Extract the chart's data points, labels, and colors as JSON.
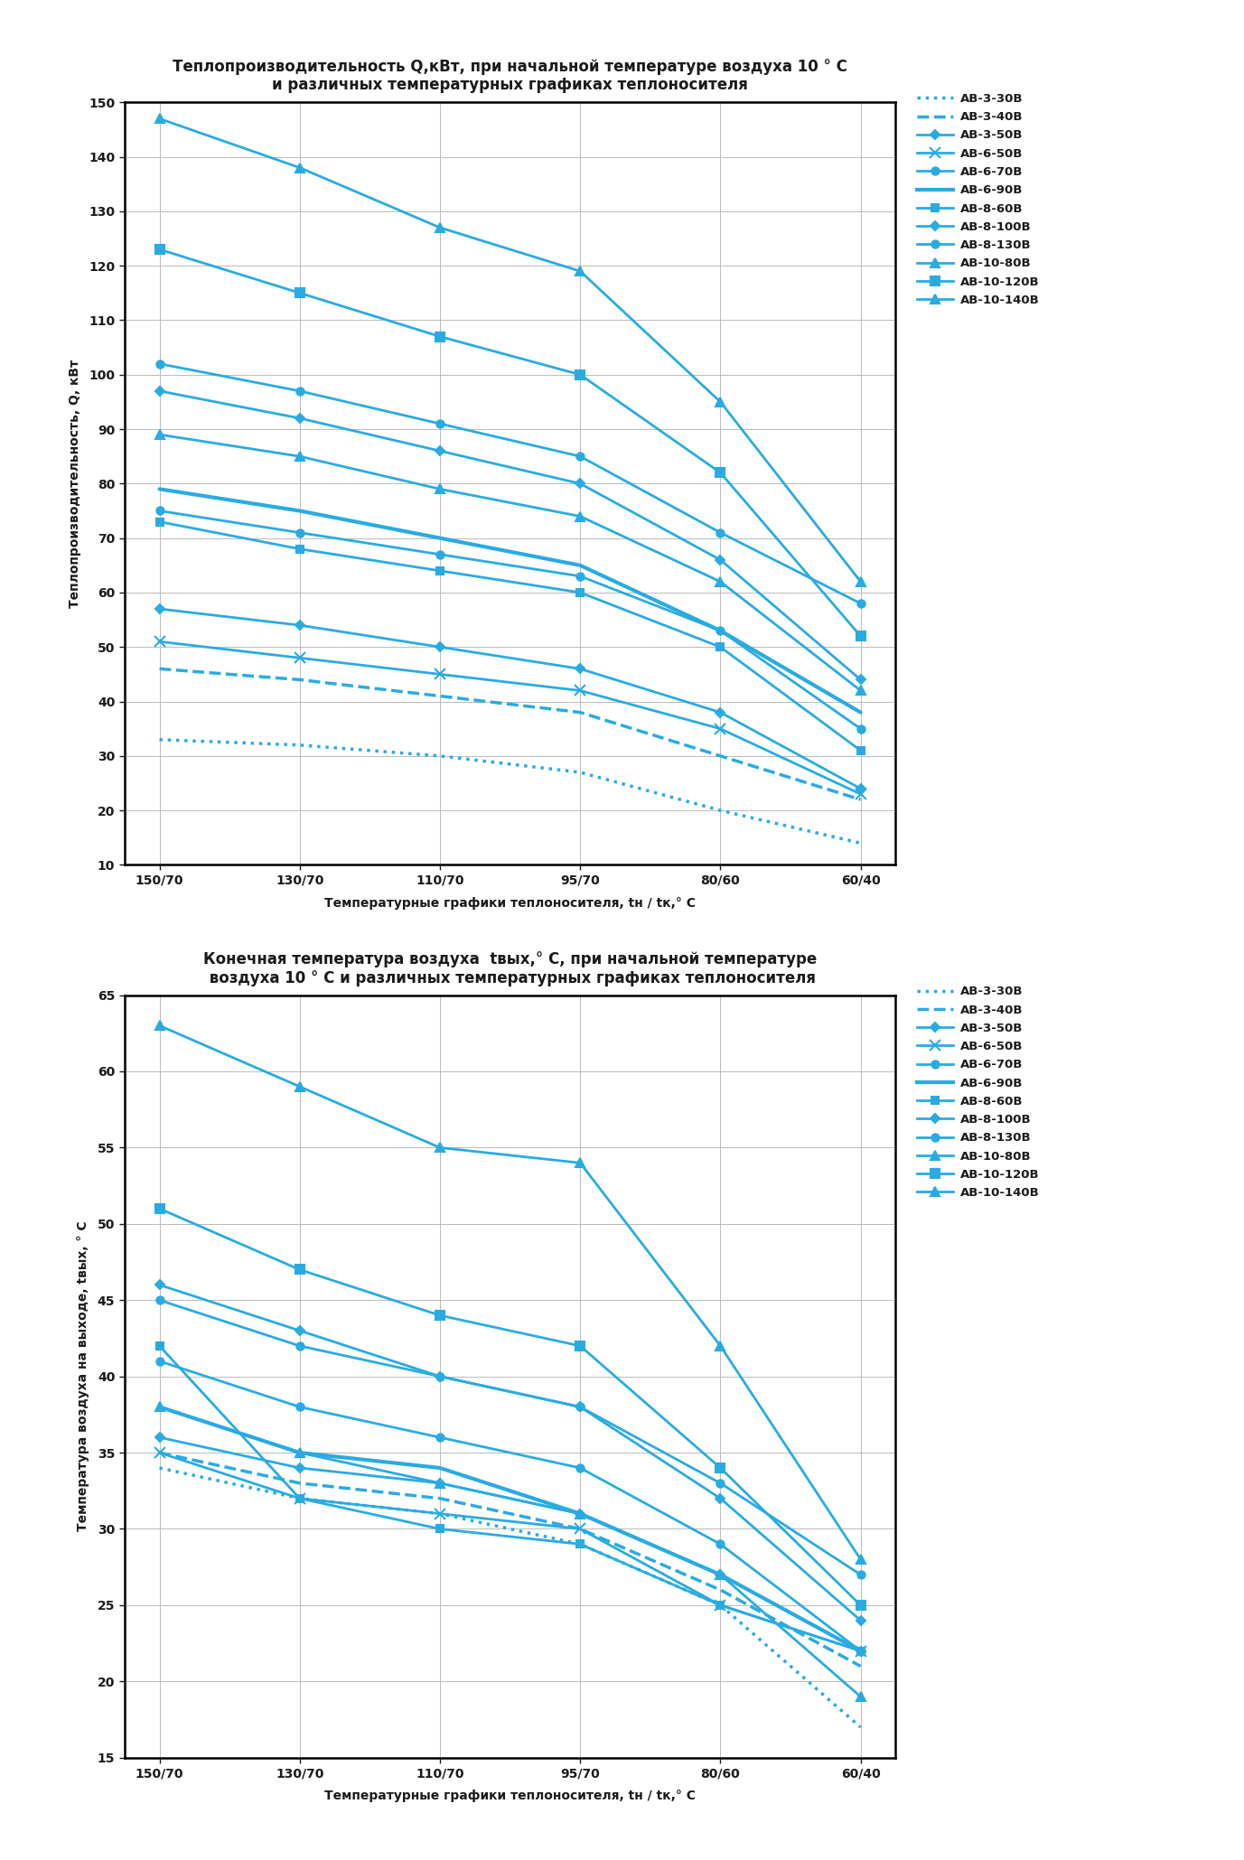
{
  "title1": "Теплопроизводительность Q,кВт, при начальной температуре воздуха 10 ° C\nи различных температурных графиках теплоносителя",
  "title2": "Конечная температура воздуха  tвых,° C, при начальной температуре\n воздуха 10 ° C и различных температурных графиках теплоносителя",
  "xlabel": "Температурные графики теплоносителя, tн / tк,° C",
  "ylabel1": "Теплопроизводительность, Q, кВт",
  "ylabel2": "Температура воздуха на выходе, tвых, ° C",
  "x_labels": [
    "150/70",
    "130/70",
    "110/70",
    "95/70",
    "80/60",
    "60/40"
  ],
  "x_values": [
    0,
    1,
    2,
    3,
    4,
    5
  ],
  "ylim1": [
    10,
    150
  ],
  "ylim2": [
    15,
    65
  ],
  "yticks1": [
    10,
    20,
    30,
    40,
    50,
    60,
    70,
    80,
    90,
    100,
    110,
    120,
    130,
    140,
    150
  ],
  "yticks2": [
    15,
    20,
    25,
    30,
    35,
    40,
    45,
    50,
    55,
    60,
    65
  ],
  "series": [
    {
      "name": "АВ-3-30В",
      "linestyle": "dotted",
      "linewidth": 2.5,
      "marker": null,
      "markersize": 6,
      "q": [
        33,
        32,
        30,
        27,
        20,
        14
      ],
      "t": [
        34,
        32,
        31,
        29,
        25,
        17
      ]
    },
    {
      "name": "АВ-3-40В",
      "linestyle": "dashed",
      "linewidth": 2.5,
      "marker": null,
      "markersize": 6,
      "q": [
        46,
        44,
        41,
        38,
        30,
        22
      ],
      "t": [
        35,
        33,
        32,
        30,
        26,
        21
      ]
    },
    {
      "name": "АВ-3-50В",
      "linestyle": "solid",
      "linewidth": 2.0,
      "marker": "D",
      "markersize": 5,
      "q": [
        57,
        54,
        50,
        46,
        38,
        24
      ],
      "t": [
        36,
        34,
        33,
        31,
        27,
        22
      ]
    },
    {
      "name": "АВ-6-50В",
      "linestyle": "solid",
      "linewidth": 2.0,
      "marker": "x",
      "markersize": 8,
      "q": [
        51,
        48,
        45,
        42,
        35,
        23
      ],
      "t": [
        35,
        32,
        31,
        30,
        25,
        22
      ]
    },
    {
      "name": "АВ-6-70В",
      "linestyle": "solid",
      "linewidth": 2.0,
      "marker": "o",
      "markersize": 6,
      "q": [
        75,
        71,
        67,
        63,
        53,
        35
      ],
      "t": [
        41,
        38,
        36,
        34,
        29,
        22
      ]
    },
    {
      "name": "АВ-6-90В",
      "linestyle": "solid",
      "linewidth": 3.0,
      "marker": null,
      "markersize": 6,
      "q": [
        79,
        75,
        70,
        65,
        53,
        38
      ],
      "t": [
        38,
        35,
        34,
        31,
        27,
        22
      ]
    },
    {
      "name": "АВ-8-60В",
      "linestyle": "solid",
      "linewidth": 2.0,
      "marker": "s",
      "markersize": 6,
      "q": [
        73,
        68,
        64,
        60,
        50,
        31
      ],
      "t": [
        42,
        32,
        30,
        29,
        25,
        22
      ]
    },
    {
      "name": "АВ-8-100В",
      "linestyle": "solid",
      "linewidth": 2.0,
      "marker": "D",
      "markersize": 5,
      "q": [
        97,
        92,
        86,
        80,
        66,
        44
      ],
      "t": [
        46,
        43,
        40,
        38,
        32,
        24
      ]
    },
    {
      "name": "АВ-8-130В",
      "linestyle": "solid",
      "linewidth": 2.0,
      "marker": "o",
      "markersize": 6,
      "q": [
        102,
        97,
        91,
        85,
        71,
        58
      ],
      "t": [
        45,
        42,
        40,
        38,
        33,
        27
      ]
    },
    {
      "name": "АВ-10-80В",
      "linestyle": "solid",
      "linewidth": 2.0,
      "marker": "^",
      "markersize": 7,
      "q": [
        89,
        85,
        79,
        74,
        62,
        42
      ],
      "t": [
        38,
        35,
        33,
        31,
        27,
        19
      ]
    },
    {
      "name": "АВ-10-120В",
      "linestyle": "solid",
      "linewidth": 2.0,
      "marker": "s",
      "markersize": 7,
      "q": [
        123,
        115,
        107,
        100,
        82,
        52
      ],
      "t": [
        51,
        47,
        44,
        42,
        34,
        25
      ]
    },
    {
      "name": "АВ-10-140В",
      "linestyle": "solid",
      "linewidth": 2.0,
      "marker": "^",
      "markersize": 7,
      "q": [
        147,
        138,
        127,
        119,
        95,
        62
      ],
      "t": [
        63,
        59,
        55,
        54,
        42,
        28
      ]
    }
  ],
  "line_color": "#29ABE2",
  "background_color": "#FFFFFF",
  "grid_color": "#BBBBBB",
  "text_color": "#1a1a1a",
  "axes_color": "#000000"
}
